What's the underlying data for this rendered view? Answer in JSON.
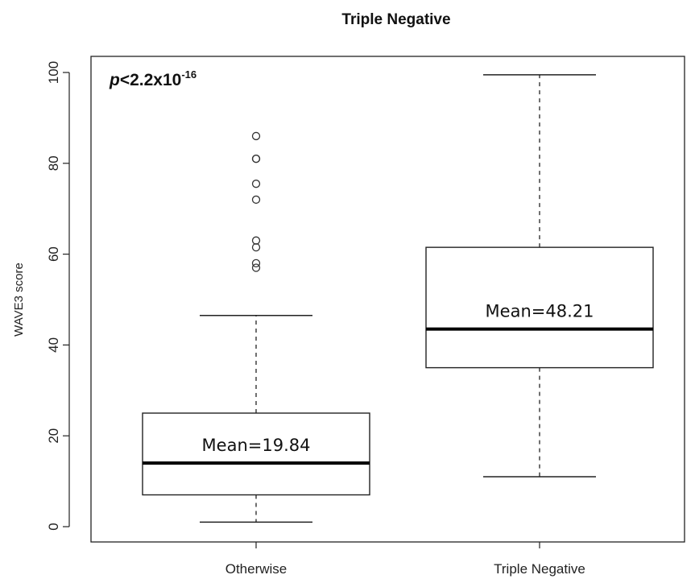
{
  "chart_data": {
    "type": "box",
    "title": "Triple Negative",
    "xlabel": "",
    "ylabel": "WAVE3 score",
    "ylim": [
      0,
      100
    ],
    "yticks": [
      0,
      20,
      40,
      60,
      80,
      100
    ],
    "categories": [
      "Otherwise",
      "Triple Negative"
    ],
    "boxes": [
      {
        "category": "Otherwise",
        "whisker_low": 1,
        "q1": 7,
        "median": 14,
        "q3": 25,
        "whisker_high": 46.5,
        "outliers": [
          86,
          81,
          81,
          75.5,
          72,
          63,
          61.5,
          58,
          57
        ],
        "mean_label": "Mean=19.84",
        "mean_value": 19.84
      },
      {
        "category": "Triple Negative",
        "whisker_low": 11,
        "q1": 35,
        "median": 43.5,
        "q3": 61.5,
        "whisker_high": 99.5,
        "outliers": [],
        "mean_label": "Mean=48.21",
        "mean_value": 48.21
      }
    ],
    "annotation": {
      "p_symbol": "p",
      "p_text": "<2.2x10",
      "p_exponent": "-16"
    },
    "grid": false,
    "legend": "none"
  }
}
